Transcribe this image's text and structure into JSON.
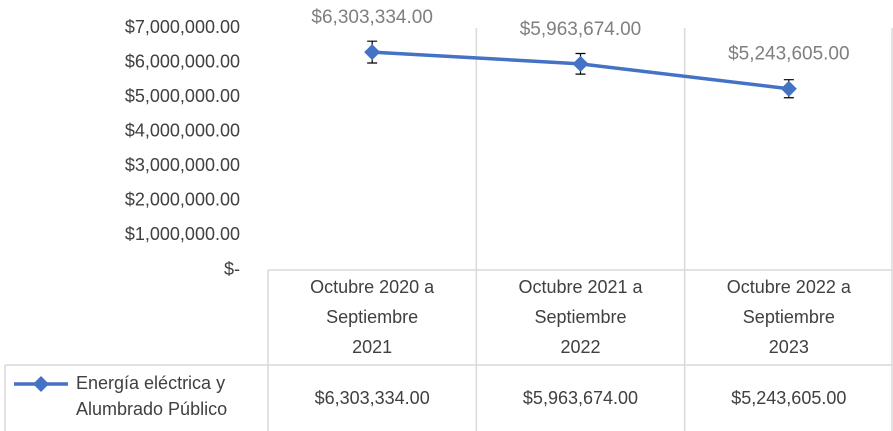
{
  "chart_data": {
    "type": "line",
    "categories": [
      "Octubre 2020 a Septiembre 2021",
      "Octubre 2021 a Septiembre 2022",
      "Octubre 2022 a Septiembre 2023"
    ],
    "series": [
      {
        "name": "Energía eléctrica y Alumbrado Público",
        "color": "#4472c4",
        "values": [
          6303334,
          5963674,
          5243605
        ],
        "value_labels": [
          "$6,303,334.00",
          "$5,963,674.00",
          "$5,243,605.00"
        ],
        "errors": [
          315000,
          298000,
          262000
        ]
      }
    ],
    "ylim": [
      0,
      7000000
    ],
    "yticks": [
      {
        "value": 0,
        "label": "$-"
      },
      {
        "value": 1000000,
        "label": "$1,000,000.00"
      },
      {
        "value": 2000000,
        "label": "$2,000,000.00"
      },
      {
        "value": 3000000,
        "label": "$3,000,000.00"
      },
      {
        "value": 4000000,
        "label": "$4,000,000.00"
      },
      {
        "value": 5000000,
        "label": "$5,000,000.00"
      },
      {
        "value": 6000000,
        "label": "$6,000,000.00"
      },
      {
        "value": 7000000,
        "label": "$7,000,000.00"
      }
    ],
    "data_table": true
  }
}
